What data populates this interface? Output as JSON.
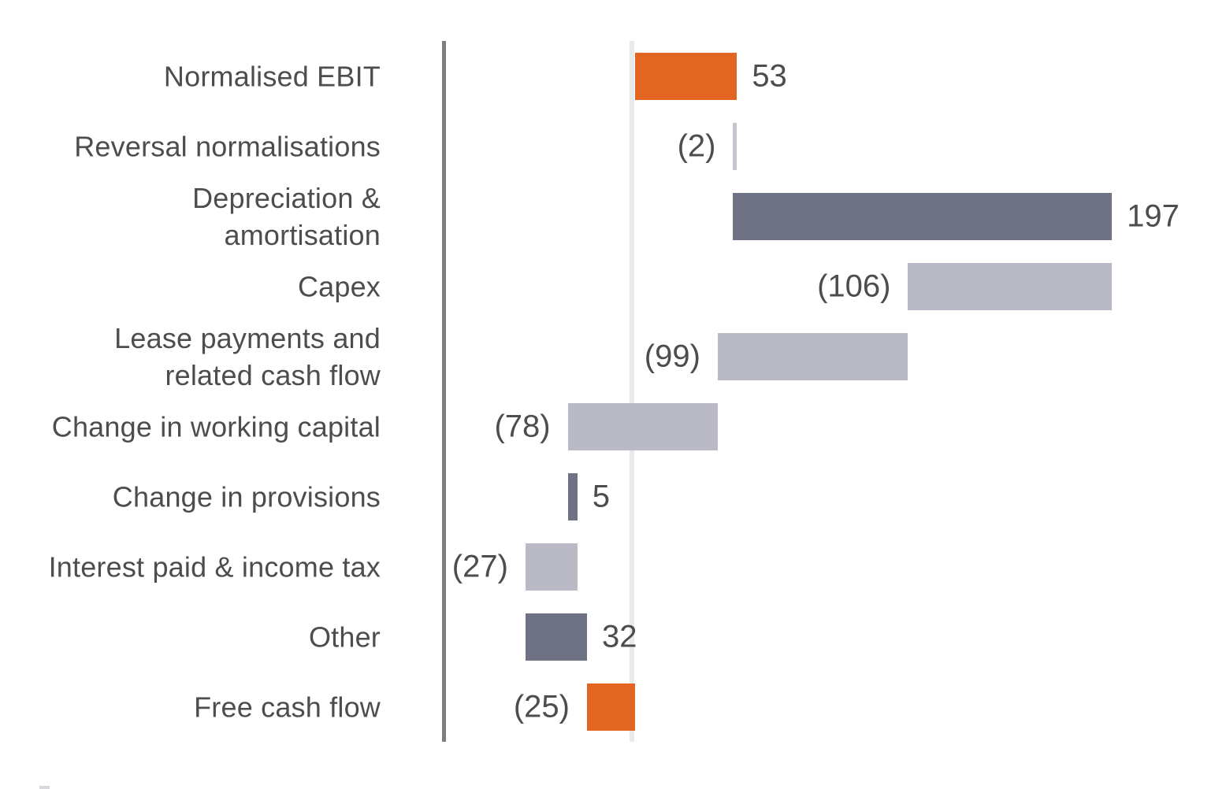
{
  "chart_data": {
    "type": "bar",
    "subtype": "waterfall-horizontal",
    "title": "",
    "xlabel": "",
    "ylabel": "",
    "legend": "none",
    "grid": "off",
    "value_axis_visible": false,
    "baseline_value": 0,
    "categories": [
      "Normalised EBIT",
      "Reversal normalisations",
      "Depreciation &\namortisation",
      "Capex",
      "Lease payments and\nrelated cash flow",
      "Change in working capital",
      "Change in provisions",
      "Interest paid & income tax",
      "Other",
      "Free cash flow"
    ],
    "series": [
      {
        "name": "Free cash flow bridge",
        "values": [
          53,
          -2,
          197,
          -106,
          -99,
          -78,
          5,
          -27,
          32,
          -25
        ]
      }
    ],
    "value_labels": [
      "53",
      "(2)",
      "197",
      "(106)",
      "(99)",
      "(78)",
      "5",
      "(27)",
      "32",
      "(25)"
    ],
    "is_total": [
      true,
      false,
      false,
      false,
      false,
      false,
      false,
      false,
      false,
      true
    ],
    "color_roles": [
      "accent",
      "light_thin",
      "dark",
      "light",
      "light",
      "light",
      "dark",
      "light",
      "dark",
      "accent"
    ],
    "colors": {
      "accent": "#E26522",
      "dark": "#6E7284",
      "light": "#B9BAC5",
      "light_thin": "#C5C6D0",
      "axis": "#7E7E7E",
      "zero_line": "#E9EAEC",
      "text": "#4D4D50"
    },
    "running_totals": [
      53,
      51,
      248,
      142,
      43,
      -35,
      -30,
      -57,
      -25,
      -25
    ]
  }
}
